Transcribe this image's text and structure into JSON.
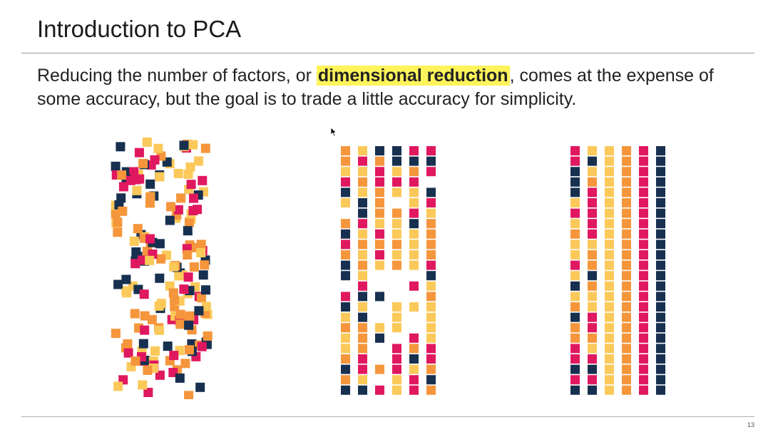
{
  "slide": {
    "title": "Introduction to PCA",
    "text_before": "Reducing the number of factors, or ",
    "highlight": "dimensional reduction",
    "text_after": ", comes at the expense of some accuracy, but the goal is to trade a little accuracy for simplicity.",
    "page_number": "13"
  },
  "colors": {
    "pink": "#e0185f",
    "orange": "#f5963c",
    "yellow": "#fbc95a",
    "navy": "#17304f",
    "highlight": "#fff45a"
  },
  "illustration": {
    "panels": [
      "scattered-squares",
      "partially-aligned-columns",
      "fully-aligned-columns"
    ],
    "aligned_column_colors": [
      "mixed",
      "mixed",
      "yellow",
      "orange",
      "pink",
      "navy"
    ]
  }
}
